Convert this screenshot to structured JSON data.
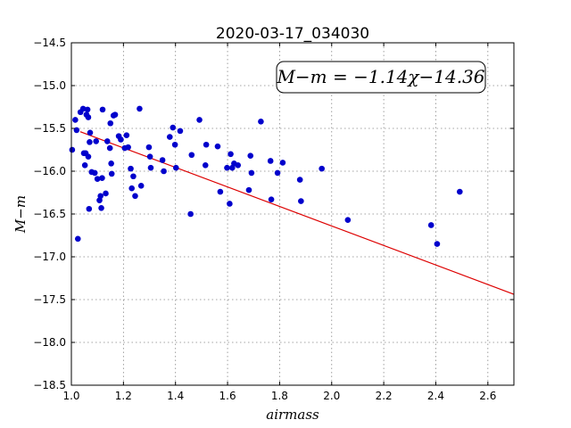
{
  "chart_data": {
    "type": "scatter",
    "title": "2020-03-17_034030",
    "xlabel": "airmass",
    "ylabel": "M−m",
    "xlim": [
      1.0,
      2.7
    ],
    "ylim": [
      -18.5,
      -14.5
    ],
    "y_inverted": true,
    "grid": true,
    "x_ticks": [
      1.0,
      1.2,
      1.4,
      1.6,
      1.8,
      2.0,
      2.2,
      2.4,
      2.6
    ],
    "x_tick_labels": [
      "1.0",
      "1.2",
      "1.4",
      "1.6",
      "1.8",
      "2.0",
      "2.2",
      "2.4",
      "2.6"
    ],
    "y_ticks": [
      -14.5,
      -15.0,
      -15.5,
      -16.0,
      -16.5,
      -17.0,
      -17.5,
      -18.0,
      -18.5
    ],
    "y_tick_labels": [
      "−14.5",
      "−15.0",
      "−15.5",
      "−16.0",
      "−16.5",
      "−17.0",
      "−17.5",
      "−18.0",
      "−18.5"
    ],
    "annotation": "M−m = −1.14χ−14.36",
    "annotation_position": "top-right",
    "colors": {
      "points": "#0000cc",
      "fit": "#dd0000"
    },
    "fit_line": {
      "slope": -1.14,
      "intercept": -14.36
    },
    "points": [
      {
        "x": 1.003,
        "y": -15.75
      },
      {
        "x": 1.015,
        "y": -15.4
      },
      {
        "x": 1.02,
        "y": -15.52
      },
      {
        "x": 1.025,
        "y": -16.79
      },
      {
        "x": 1.035,
        "y": -15.31
      },
      {
        "x": 1.045,
        "y": -15.27
      },
      {
        "x": 1.048,
        "y": -15.79
      },
      {
        "x": 1.052,
        "y": -15.93
      },
      {
        "x": 1.055,
        "y": -15.79
      },
      {
        "x": 1.058,
        "y": -15.34
      },
      {
        "x": 1.062,
        "y": -15.28
      },
      {
        "x": 1.065,
        "y": -15.83
      },
      {
        "x": 1.065,
        "y": -15.37
      },
      {
        "x": 1.068,
        "y": -16.44
      },
      {
        "x": 1.07,
        "y": -15.66
      },
      {
        "x": 1.072,
        "y": -15.55
      },
      {
        "x": 1.078,
        "y": -16.01
      },
      {
        "x": 1.09,
        "y": -16.02
      },
      {
        "x": 1.095,
        "y": -15.65
      },
      {
        "x": 1.1,
        "y": -16.09
      },
      {
        "x": 1.108,
        "y": -16.34
      },
      {
        "x": 1.112,
        "y": -16.29
      },
      {
        "x": 1.115,
        "y": -16.43
      },
      {
        "x": 1.118,
        "y": -16.08
      },
      {
        "x": 1.12,
        "y": -15.28
      },
      {
        "x": 1.132,
        "y": -16.26
      },
      {
        "x": 1.138,
        "y": -15.65
      },
      {
        "x": 1.148,
        "y": -15.73
      },
      {
        "x": 1.15,
        "y": -15.44
      },
      {
        "x": 1.153,
        "y": -15.91
      },
      {
        "x": 1.155,
        "y": -16.03
      },
      {
        "x": 1.162,
        "y": -15.35
      },
      {
        "x": 1.168,
        "y": -15.34
      },
      {
        "x": 1.182,
        "y": -15.59
      },
      {
        "x": 1.19,
        "y": -15.63
      },
      {
        "x": 1.205,
        "y": -15.73
      },
      {
        "x": 1.212,
        "y": -15.58
      },
      {
        "x": 1.218,
        "y": -15.72
      },
      {
        "x": 1.228,
        "y": -15.97
      },
      {
        "x": 1.232,
        "y": -16.2
      },
      {
        "x": 1.238,
        "y": -16.06
      },
      {
        "x": 1.245,
        "y": -16.29
      },
      {
        "x": 1.262,
        "y": -15.27
      },
      {
        "x": 1.268,
        "y": -16.17
      },
      {
        "x": 1.298,
        "y": -15.72
      },
      {
        "x": 1.302,
        "y": -15.83
      },
      {
        "x": 1.305,
        "y": -15.96
      },
      {
        "x": 1.35,
        "y": -15.87
      },
      {
        "x": 1.355,
        "y": -16.0
      },
      {
        "x": 1.378,
        "y": -15.6
      },
      {
        "x": 1.39,
        "y": -15.49
      },
      {
        "x": 1.398,
        "y": -15.69
      },
      {
        "x": 1.402,
        "y": -15.96
      },
      {
        "x": 1.418,
        "y": -15.53
      },
      {
        "x": 1.458,
        "y": -16.5
      },
      {
        "x": 1.462,
        "y": -15.81
      },
      {
        "x": 1.492,
        "y": -15.4
      },
      {
        "x": 1.515,
        "y": -15.93
      },
      {
        "x": 1.518,
        "y": -15.69
      },
      {
        "x": 1.562,
        "y": -15.71
      },
      {
        "x": 1.572,
        "y": -16.24
      },
      {
        "x": 1.598,
        "y": -15.96
      },
      {
        "x": 1.608,
        "y": -16.38
      },
      {
        "x": 1.612,
        "y": -15.8
      },
      {
        "x": 1.618,
        "y": -15.96
      },
      {
        "x": 1.625,
        "y": -15.91
      },
      {
        "x": 1.64,
        "y": -15.93
      },
      {
        "x": 1.682,
        "y": -16.22
      },
      {
        "x": 1.688,
        "y": -15.82
      },
      {
        "x": 1.692,
        "y": -16.02
      },
      {
        "x": 1.728,
        "y": -15.42
      },
      {
        "x": 1.765,
        "y": -15.88
      },
      {
        "x": 1.768,
        "y": -16.33
      },
      {
        "x": 1.792,
        "y": -16.02
      },
      {
        "x": 1.812,
        "y": -15.9
      },
      {
        "x": 1.878,
        "y": -16.1
      },
      {
        "x": 1.882,
        "y": -16.35
      },
      {
        "x": 1.962,
        "y": -15.97
      },
      {
        "x": 2.062,
        "y": -16.57
      },
      {
        "x": 2.382,
        "y": -16.63
      },
      {
        "x": 2.405,
        "y": -16.85
      },
      {
        "x": 2.492,
        "y": -16.24
      }
    ]
  }
}
